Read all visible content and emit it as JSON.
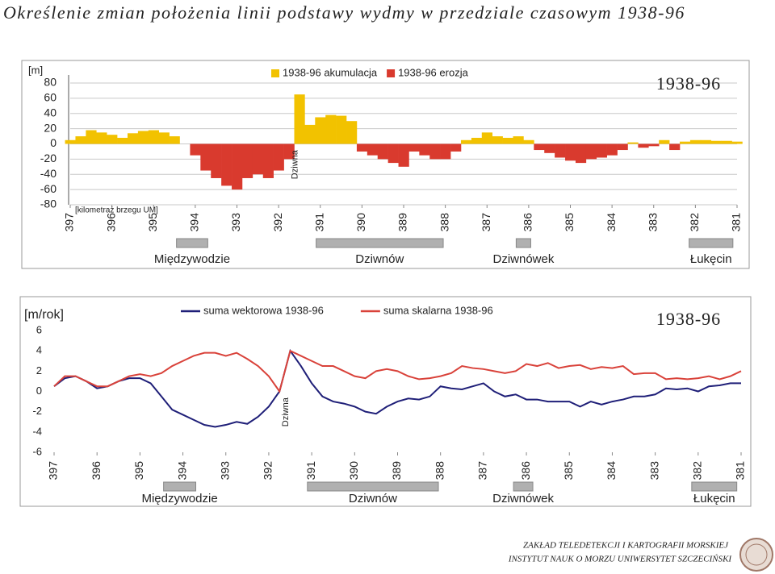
{
  "title": "Określenie zmian położenia linii podstawy wydmy w przedziale czasowym 1938-96",
  "footer": [
    "ZAKŁAD TELEDETEKCJI I KARTOGRAFII MORSKIEJ",
    "INSTYTUT NAUK O MORZU UNIWERSYTET SZCZECIŃSKI"
  ],
  "chart_data": [
    {
      "type": "bar",
      "y_label": "[m]",
      "x_label": "[kilometraż brzegu UM]",
      "annotation": "Dziwna",
      "period_label": "1938-96",
      "legend": "top",
      "grid": true,
      "x": [
        397,
        396.75,
        396.5,
        396.25,
        396,
        395.75,
        395.5,
        395.25,
        395,
        394.75,
        394.5,
        394.25,
        394,
        393.75,
        393.5,
        393.25,
        393,
        392.75,
        392.5,
        392.25,
        392,
        391.75,
        391.5,
        391.25,
        391,
        390.75,
        390.5,
        390.25,
        390,
        389.75,
        389.5,
        389.25,
        389,
        388.75,
        388.5,
        388.25,
        388,
        387.75,
        387.5,
        387.25,
        387,
        386.75,
        386.5,
        386.25,
        386,
        385.75,
        385.5,
        385.25,
        385,
        384.75,
        384.5,
        384.25,
        384,
        383.75,
        383.5,
        383.25,
        383,
        382.75,
        382.5,
        382.25,
        382,
        381.75,
        381.5,
        381.25,
        381
      ],
      "series": [
        {
          "name": "1938-96 akumulacja",
          "color": "#f2c200",
          "values": [
            5,
            10,
            18,
            15,
            12,
            8,
            14,
            17,
            18,
            15,
            10,
            0,
            null,
            null,
            null,
            null,
            null,
            null,
            null,
            null,
            null,
            null,
            65,
            25,
            35,
            38,
            37,
            30,
            null,
            null,
            null,
            null,
            null,
            null,
            null,
            null,
            null,
            null,
            5,
            8,
            15,
            10,
            8,
            10,
            5,
            null,
            null,
            null,
            null,
            null,
            null,
            null,
            null,
            null,
            2,
            null,
            null,
            5,
            null,
            3,
            5,
            5,
            4,
            4,
            3
          ]
        },
        {
          "name": "1938-96 erozja",
          "color": "#d93a2e",
          "values": [
            null,
            null,
            null,
            null,
            null,
            null,
            null,
            null,
            null,
            null,
            null,
            null,
            -15,
            -35,
            -45,
            -55,
            -60,
            -45,
            -40,
            -45,
            -35,
            -20,
            null,
            null,
            null,
            null,
            null,
            null,
            -10,
            -15,
            -20,
            -25,
            -30,
            -10,
            -15,
            -20,
            -20,
            -10,
            null,
            null,
            null,
            null,
            null,
            null,
            null,
            -8,
            -12,
            -18,
            -22,
            -25,
            -20,
            -18,
            -15,
            -8,
            null,
            -5,
            -3,
            null,
            -8,
            null,
            null,
            null,
            null,
            null,
            null
          ]
        }
      ],
      "xlim": [
        397,
        381
      ],
      "xticks": [
        397,
        396,
        395,
        394,
        393,
        392,
        391,
        390,
        389,
        388,
        387,
        386,
        385,
        384,
        383,
        382,
        381
      ],
      "ylim": [
        -80,
        80
      ],
      "yticks": [
        -80,
        -60,
        -40,
        -20,
        0,
        20,
        40,
        60,
        80
      ],
      "regions": [
        {
          "label": "Międzywodzie",
          "from": 394.45,
          "to": 393.7
        },
        {
          "label": "Dziwnów",
          "from": 391.1,
          "to": 388.05
        },
        {
          "label": "Dziwnówek",
          "from": 386.3,
          "to": 385.95
        },
        {
          "label": "Łukęcin",
          "from": 382.15,
          "to": 381.1
        }
      ]
    },
    {
      "type": "line",
      "y_label": "[m/rok]",
      "annotation": "Dziwna",
      "period_label": "1938-96",
      "legend": "top",
      "grid": false,
      "x": [
        397,
        396.75,
        396.5,
        396.25,
        396,
        395.75,
        395.5,
        395.25,
        395,
        394.75,
        394.5,
        394.25,
        394,
        393.75,
        393.5,
        393.25,
        393,
        392.75,
        392.5,
        392.25,
        392,
        391.75,
        391.5,
        391.25,
        391,
        390.75,
        390.5,
        390.25,
        390,
        389.75,
        389.5,
        389.25,
        389,
        388.75,
        388.5,
        388.25,
        388,
        387.75,
        387.5,
        387.25,
        387,
        386.75,
        386.5,
        386.25,
        386,
        385.75,
        385.5,
        385.25,
        385,
        384.75,
        384.5,
        384.25,
        384,
        383.75,
        383.5,
        383.25,
        383,
        382.75,
        382.5,
        382.25,
        382,
        381.75,
        381.5,
        381.25,
        381
      ],
      "series": [
        {
          "name": "suma wektorowa 1938-96",
          "color": "#1f1f78",
          "values": [
            0.5,
            1.3,
            1.5,
            1,
            0.3,
            0.5,
            1,
            1.3,
            1.3,
            0.8,
            -0.5,
            -1.8,
            -2.3,
            -2.8,
            -3.3,
            -3.5,
            -3.3,
            -3,
            -3.2,
            -2.5,
            -1.5,
            0,
            4,
            2.5,
            0.8,
            -0.5,
            -1,
            -1.2,
            -1.5,
            -2,
            -2.2,
            -1.5,
            -1,
            -0.7,
            -0.8,
            -0.5,
            0.5,
            0.3,
            0.2,
            0.5,
            0.8,
            0,
            -0.5,
            -0.3,
            -0.8,
            -0.8,
            -1,
            -1,
            -1,
            -1.5,
            -1,
            -1.3,
            -1,
            -0.8,
            -0.5,
            -0.5,
            -0.3,
            0.3,
            0.2,
            0.3,
            0,
            0.5,
            0.6,
            0.8,
            0.8
          ]
        },
        {
          "name": "suma skalarna 1938-96",
          "color": "#d9423a",
          "values": [
            0.5,
            1.5,
            1.5,
            1,
            0.5,
            0.5,
            1,
            1.5,
            1.7,
            1.5,
            1.8,
            2.5,
            3,
            3.5,
            3.8,
            3.8,
            3.5,
            3.8,
            3.2,
            2.5,
            1.5,
            0,
            4,
            3.5,
            3,
            2.5,
            2.5,
            2,
            1.5,
            1.3,
            2,
            2.2,
            2,
            1.5,
            1.2,
            1.3,
            1.5,
            1.8,
            2.5,
            2.3,
            2.2,
            2,
            1.8,
            2,
            2.7,
            2.5,
            2.8,
            2.3,
            2.5,
            2.6,
            2.2,
            2.4,
            2.3,
            2.5,
            1.7,
            1.8,
            1.8,
            1.2,
            1.3,
            1.2,
            1.3,
            1.5,
            1.2,
            1.5,
            2
          ]
        }
      ],
      "xlim": [
        397,
        381
      ],
      "xticks": [
        397,
        396,
        395,
        394,
        393,
        392,
        391,
        390,
        389,
        388,
        387,
        386,
        385,
        384,
        383,
        382,
        381
      ],
      "ylim": [
        -6,
        6
      ],
      "yticks": [
        -6,
        -4,
        -2,
        0,
        2,
        4,
        6
      ],
      "regions": [
        {
          "label": "Międzywodzie",
          "from": 394.45,
          "to": 393.7
        },
        {
          "label": "Dziwnów",
          "from": 391.1,
          "to": 388.05
        },
        {
          "label": "Dziwnówek",
          "from": 386.3,
          "to": 385.85
        },
        {
          "label": "Łukęcin",
          "from": 382.15,
          "to": 381.1
        }
      ]
    }
  ]
}
